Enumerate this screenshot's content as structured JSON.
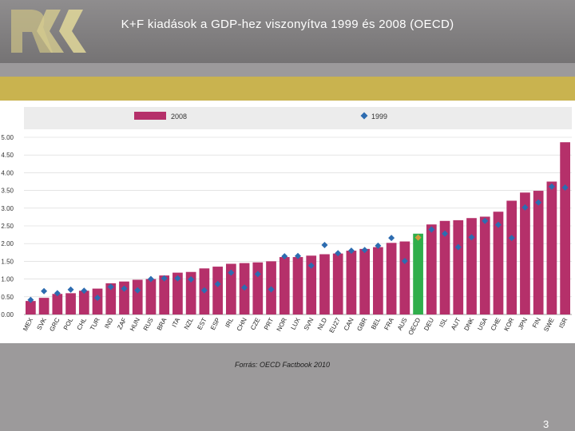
{
  "header": {
    "title": "K+F kiadások a GDP-hez viszonyítva 1999 és 2008 (OECD)"
  },
  "footer": {
    "source": "Forrás: OECD Factbook 2010",
    "page_number": "3"
  },
  "colors": {
    "background": "#9c9a9b",
    "band": "#c9b34f",
    "bar_2008": "#b5306a",
    "bar_oecd": "#2fae4b",
    "marker_1999": "#2d6cb0",
    "marker_oecd": "#d49a3c"
  },
  "chart_data": {
    "type": "bar",
    "categories": [
      "MEX",
      "SVK",
      "GRC",
      "POL",
      "CHL",
      "TUR",
      "IND",
      "ZAF",
      "HUN",
      "RUS",
      "BRA",
      "ITA",
      "NZL",
      "EST",
      "ESP",
      "IRL",
      "CHN",
      "CZE",
      "PRT",
      "NOR",
      "LUX",
      "SVN",
      "NLD",
      "EU27",
      "CAN",
      "GBR",
      "BEL",
      "FRA",
      "AUS",
      "OECD",
      "DEU",
      "ISL",
      "AUT",
      "DNK",
      "USA",
      "CHE",
      "KOR",
      "JPN",
      "FIN",
      "SWE",
      "ISR"
    ],
    "highlight_category": "OECD",
    "series": [
      {
        "name": "2008",
        "kind": "bar",
        "values": [
          0.38,
          0.47,
          0.58,
          0.6,
          0.67,
          0.73,
          0.88,
          0.93,
          0.98,
          1.0,
          1.1,
          1.18,
          1.2,
          1.3,
          1.35,
          1.43,
          1.45,
          1.47,
          1.5,
          1.62,
          1.62,
          1.66,
          1.7,
          1.72,
          1.8,
          1.85,
          1.9,
          2.02,
          2.06,
          2.28,
          2.54,
          2.64,
          2.66,
          2.72,
          2.76,
          2.9,
          3.21,
          3.44,
          3.49,
          3.75,
          4.86
        ]
      },
      {
        "name": "1999",
        "kind": "marker",
        "values": [
          0.41,
          0.66,
          0.6,
          0.7,
          0.67,
          0.47,
          0.78,
          0.73,
          0.68,
          1.0,
          1.02,
          1.02,
          0.99,
          0.68,
          0.86,
          1.18,
          0.76,
          1.14,
          0.71,
          1.64,
          1.65,
          1.38,
          1.96,
          1.73,
          1.8,
          1.82,
          1.94,
          2.16,
          1.51,
          2.17,
          2.4,
          2.28,
          1.9,
          2.18,
          2.64,
          2.53,
          2.16,
          3.02,
          3.16,
          3.61,
          3.58
        ]
      }
    ],
    "ylim": [
      0,
      5
    ],
    "yticks": [
      "0.00",
      "0.50",
      "1.00",
      "1.50",
      "2.00",
      "2.50",
      "3.00",
      "3.50",
      "4.00",
      "4.50",
      "5.00"
    ],
    "grid": true,
    "legend_position": "top"
  }
}
